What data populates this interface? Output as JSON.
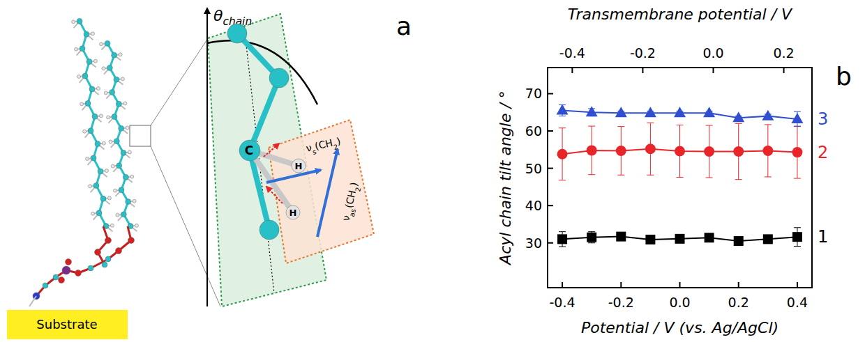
{
  "diagram": {
    "panel_label": "a",
    "theta_label": [
      {
        "text": "θ"
      },
      {
        "text": "chain",
        "sub": true
      }
    ],
    "atom_labels": [
      "C",
      "H",
      "H"
    ],
    "vibration_labels": [
      [
        {
          "text": "ν"
        },
        {
          "text": "s",
          "sub": true
        },
        {
          "text": "(CH"
        },
        {
          "text": "2",
          "sub": true
        },
        {
          "text": ")"
        }
      ],
      [
        {
          "text": "ν"
        },
        {
          "text": "as",
          "sub": true
        },
        {
          "text": "(CH"
        },
        {
          "text": "2",
          "sub": true
        },
        {
          "text": ")"
        }
      ]
    ],
    "substrate_label": "Substrate"
  },
  "chart_data": {
    "type": "line",
    "panel_label": "b",
    "x_label": "Potential / V (vs. Ag/AgCl)",
    "x2_label": "Transmembrane potential / V",
    "y_label": "Acyl chain tilt angle / °",
    "x": [
      -0.4,
      -0.3,
      -0.2,
      -0.1,
      0,
      0.1,
      0.2,
      0.3,
      0.4
    ],
    "xlim": [
      -0.45,
      0.45
    ],
    "xticks": [
      -0.4,
      -0.2,
      {
        "value": 0,
        "label": "0.0"
      },
      0.2,
      0.4
    ],
    "x2lim": [
      -0.47,
      0.28
    ],
    "x2ticks": [
      -0.4,
      -0.2,
      {
        "value": 0,
        "label": "0.0"
      },
      0.2
    ],
    "ylim": [
      18,
      77
    ],
    "yticks": [
      30,
      40,
      50,
      60,
      70
    ],
    "series": [
      {
        "name": "1",
        "color": "#000000",
        "marker": "square",
        "values": [
          31,
          31.5,
          31.7,
          30.9,
          31.1,
          31.4,
          30.5,
          31,
          31.6
        ],
        "errors": [
          2,
          1.5,
          0.8,
          0.8,
          0.5,
          0.8,
          0.5,
          0.5,
          2.5
        ]
      },
      {
        "name": "2",
        "color": "#e8262a",
        "marker": "circle",
        "values": [
          53.8,
          54.8,
          54.7,
          55.2,
          54.6,
          54.5,
          54.5,
          54.7,
          54.3
        ],
        "errors": [
          7,
          6.5,
          6.5,
          7,
          7,
          7,
          7.5,
          7,
          7
        ]
      },
      {
        "name": "3",
        "color": "#2f4fd0",
        "marker": "triangle",
        "values": [
          65.5,
          65,
          64.8,
          64.8,
          64.8,
          64.8,
          63.5,
          64,
          63.2
        ],
        "errors": [
          1.5,
          1,
          0.5,
          0.5,
          0.5,
          0.5,
          0.5,
          0.5,
          2
        ]
      }
    ]
  }
}
